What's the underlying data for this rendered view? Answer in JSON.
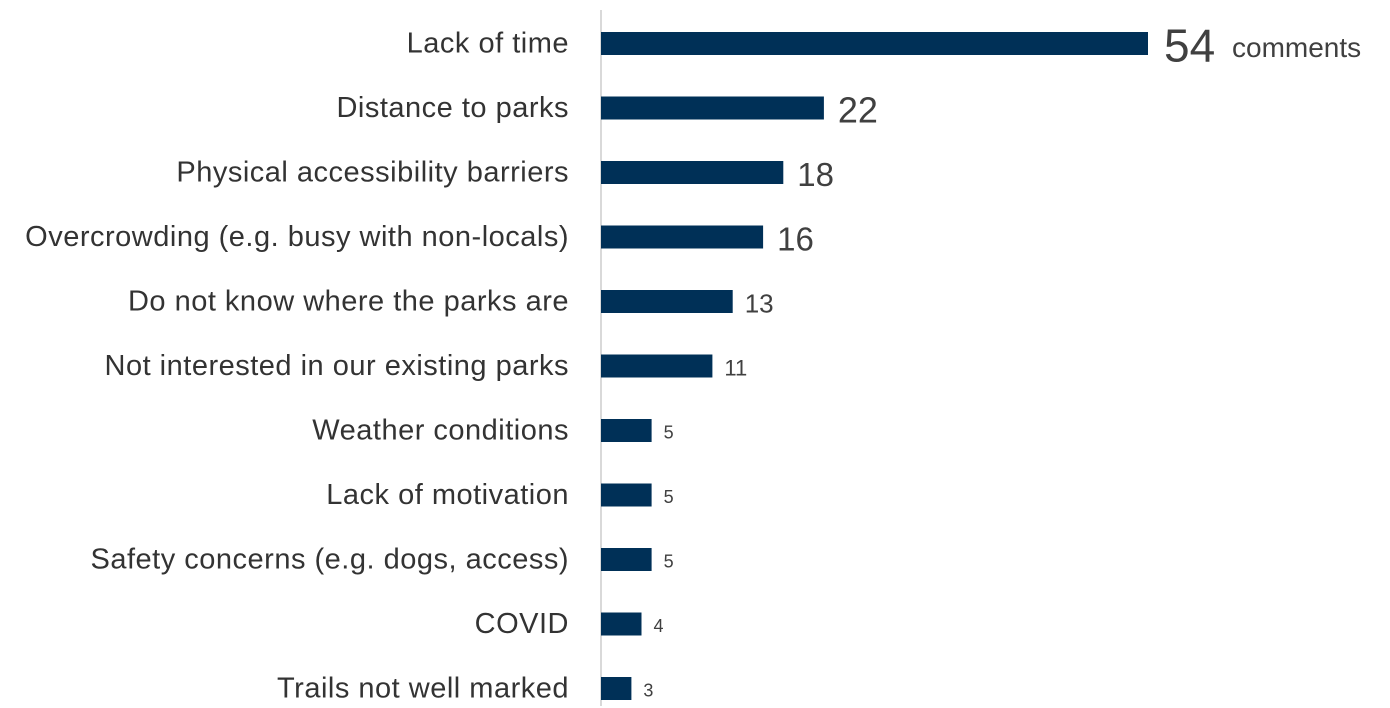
{
  "chart_data": {
    "type": "bar",
    "orientation": "horizontal",
    "categories": [
      "Lack of time",
      "Distance to parks",
      "Physical accessibility barriers",
      "Overcrowding (e.g. busy with non-locals)",
      "Do not know where the parks are",
      "Not interested in our existing parks",
      "Weather conditions",
      "Lack of motivation",
      "Safety concerns (e.g. dogs, access)",
      "COVID",
      "Trails not well marked"
    ],
    "values": [
      54,
      22,
      18,
      16,
      13,
      11,
      5,
      5,
      5,
      4,
      3
    ],
    "value_unit_label": "comments",
    "title": "",
    "xlabel": "",
    "ylabel": "",
    "xlim": [
      0,
      54
    ],
    "grid": false,
    "legend": "none",
    "bar_color": "#003057"
  }
}
